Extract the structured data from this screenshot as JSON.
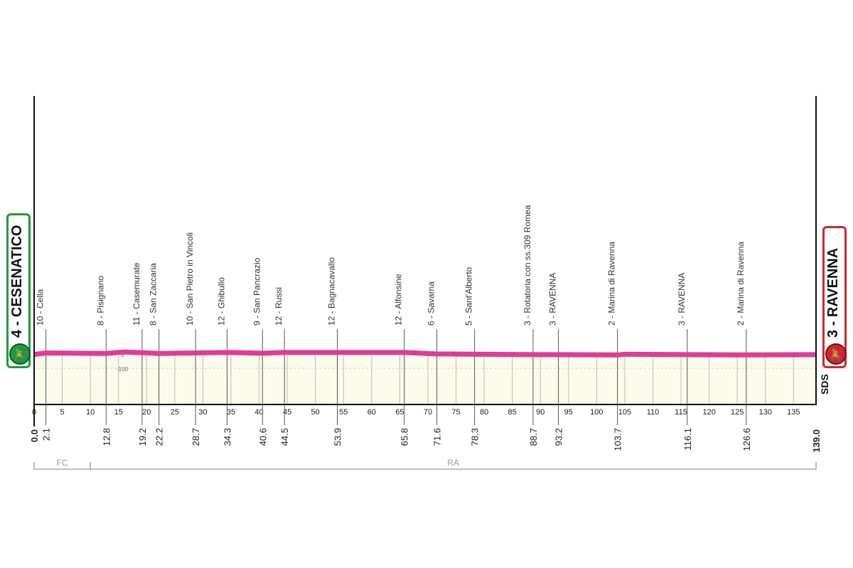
{
  "start": {
    "label": "4 - CESENATICO",
    "icon": "cyclist-icon",
    "color": "#1f9a3e"
  },
  "finish": {
    "label": "3 - RAVENNA",
    "icon": "cyclist-icon",
    "color": "#d1262e"
  },
  "logo_text": "SDS",
  "chart_data": {
    "type": "area",
    "title": "",
    "xlabel": "",
    "ylabel": "",
    "xlim": [
      0,
      139
    ],
    "x_ticks": [
      "0",
      "5",
      "10",
      "15",
      "20",
      "25",
      "30",
      "35",
      "40",
      "45",
      "50",
      "55",
      "60",
      "65",
      "70",
      "75",
      "80",
      "85",
      "90",
      "95",
      "100",
      "105",
      "110",
      "115",
      "120",
      "125",
      "130",
      "135"
    ],
    "altitude_labels": [
      "0",
      "-100"
    ],
    "line_color": "#e03a9b",
    "fill_color": "#fbfbea",
    "distance_labels": [
      "0.0",
      "2.1",
      "12.8",
      "19.2",
      "22.2",
      "28.7",
      "34.3",
      "40.6",
      "44.5",
      "53.9",
      "65.8",
      "71.6",
      "78.3",
      "88.7",
      "93.2",
      "103.7",
      "116.1",
      "126.6",
      "139.0"
    ],
    "waypoints": [
      {
        "km": 2.1,
        "label": "10 - Cella",
        "alt": 10
      },
      {
        "km": 12.8,
        "label": "8 - Pisignano",
        "alt": 8
      },
      {
        "km": 19.2,
        "label": "11 - Casemurate",
        "alt": 11
      },
      {
        "km": 22.2,
        "label": "8 - San Zaccaria",
        "alt": 8
      },
      {
        "km": 28.7,
        "label": "10 - San Pietro in Vincoli",
        "alt": 10
      },
      {
        "km": 34.3,
        "label": "12 - Ghibullo",
        "alt": 12
      },
      {
        "km": 40.6,
        "label": "9 - San Pancrazio",
        "alt": 9
      },
      {
        "km": 44.5,
        "label": "12 - Russi",
        "alt": 12
      },
      {
        "km": 53.9,
        "label": "12 - Bagnacavallo",
        "alt": 12
      },
      {
        "km": 65.8,
        "label": "12 - Alfonsine",
        "alt": 12
      },
      {
        "km": 71.6,
        "label": "6 - Savarna",
        "alt": 6
      },
      {
        "km": 78.3,
        "label": "5 - Sant'Alberto",
        "alt": 5
      },
      {
        "km": 88.7,
        "label": "3 - Rotatoria con ss.309 Romea",
        "alt": 3
      },
      {
        "km": 93.2,
        "label": "3 - RAVENNA",
        "alt": 3
      },
      {
        "km": 103.7,
        "label": "2 - Marina di Ravenna",
        "alt": 2
      },
      {
        "km": 116.1,
        "label": "3 - RAVENNA",
        "alt": 3
      },
      {
        "km": 126.6,
        "label": "2 - Marina di Ravenna",
        "alt": 2
      }
    ],
    "profile": [
      [
        0,
        4
      ],
      [
        2.1,
        10
      ],
      [
        12.8,
        8
      ],
      [
        16,
        14
      ],
      [
        19.2,
        11
      ],
      [
        22.2,
        8
      ],
      [
        28.7,
        10
      ],
      [
        34.3,
        12
      ],
      [
        40.6,
        9
      ],
      [
        44.5,
        12
      ],
      [
        53.9,
        12
      ],
      [
        65.8,
        12
      ],
      [
        71.6,
        6
      ],
      [
        78.3,
        5
      ],
      [
        88.7,
        3
      ],
      [
        93.2,
        3
      ],
      [
        103.7,
        2
      ],
      [
        105,
        5
      ],
      [
        116.1,
        3
      ],
      [
        126.6,
        2
      ],
      [
        139,
        3
      ]
    ],
    "regions": [
      {
        "label": "FC",
        "from": 0,
        "to": 10
      },
      {
        "label": "RA",
        "from": 10,
        "to": 139
      }
    ]
  }
}
